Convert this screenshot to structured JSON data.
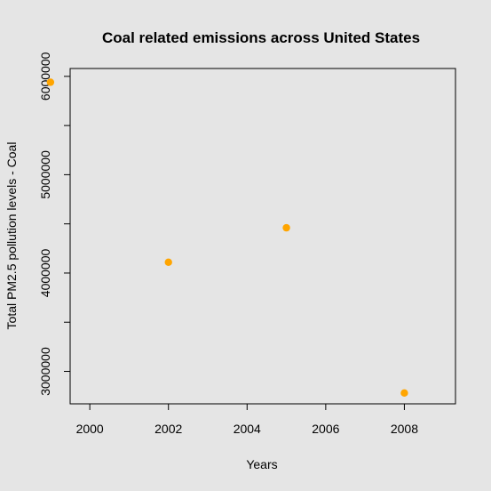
{
  "chart_data": {
    "type": "scatter",
    "title": "Coal related emissions across United States",
    "xlabel": "Years",
    "ylabel": "Total PM2.5 pollution levels - Coal",
    "x": [
      1999,
      2002,
      2005,
      2008
    ],
    "y": [
      5940000,
      4110000,
      4460000,
      2780000
    ],
    "xlim": [
      1999.5,
      2009.3
    ],
    "ylim": [
      2670000,
      6080000
    ],
    "xticks": [
      2000,
      2002,
      2004,
      2006,
      2008
    ],
    "xtick_labels": [
      "2000",
      "2002",
      "2004",
      "2006",
      "2008"
    ],
    "yticks": [
      3000000,
      3500000,
      4000000,
      4500000,
      5000000,
      5500000,
      6000000
    ],
    "ytick_labels": [
      "3000000",
      "",
      "4000000",
      "",
      "5000000",
      "",
      "6000000"
    ],
    "point_color": "#ffa500",
    "background_color": "#e5e5e5",
    "grid": false,
    "legend": "none"
  }
}
